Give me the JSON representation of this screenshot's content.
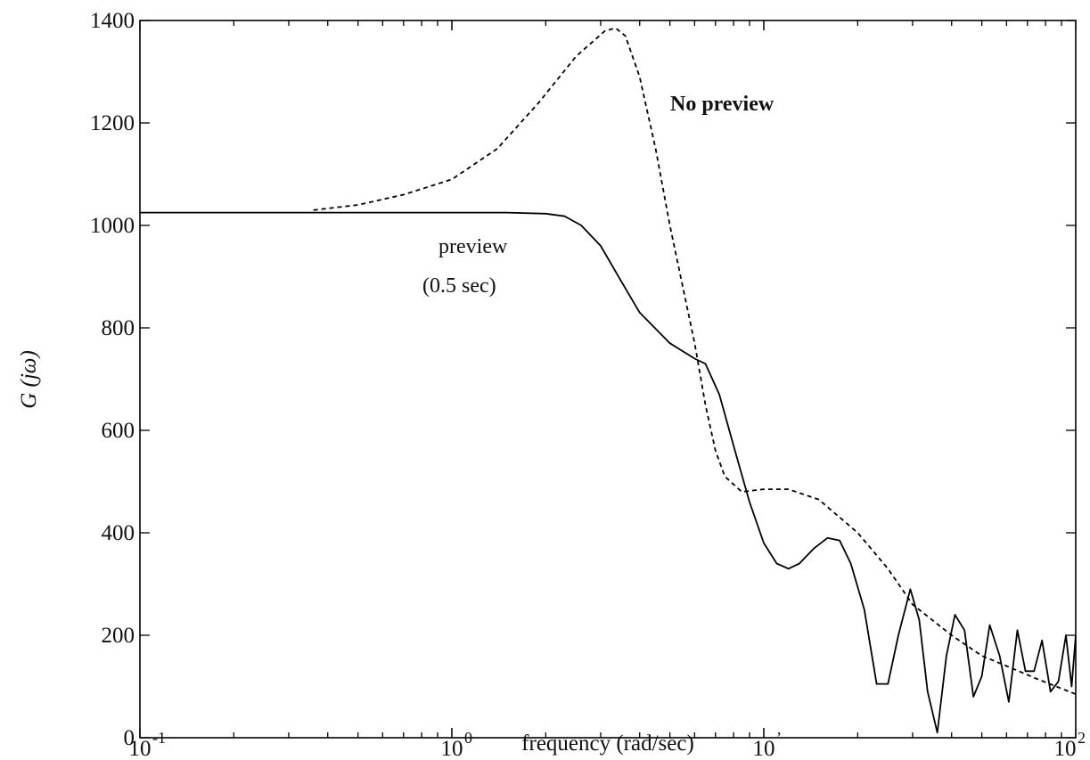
{
  "chart_data": {
    "type": "line",
    "x_scale": "log",
    "xlim": [
      0.1,
      100
    ],
    "ylim": [
      0,
      1400
    ],
    "grid": false,
    "xlabel": "frequency (rad/sec)",
    "ylabel": "G (jω)",
    "y_ticks": [
      "0",
      "200",
      "400",
      "600",
      "800",
      "1000",
      "1200",
      "1400"
    ],
    "x_ticks": [
      {
        "base": "10",
        "exp": "-1"
      },
      {
        "base": "10",
        "exp": "0"
      },
      {
        "base": "10",
        "exp": "’"
      },
      {
        "base": "10",
        "exp": "2"
      }
    ],
    "annotations": {
      "no_preview": "No preview",
      "preview": "preview",
      "preview_time": "(0.5 sec)"
    },
    "series": [
      {
        "style": "dashed",
        "x": [
          0.36,
          0.5,
          0.7,
          1.0,
          1.4,
          1.9,
          2.5,
          3.1,
          3.35,
          3.6,
          4.0,
          4.5,
          5.0,
          5.5,
          6.0,
          6.5,
          7.0,
          7.5,
          8.5,
          10,
          12,
          15,
          20,
          25,
          30,
          40,
          50,
          60,
          75,
          100
        ],
        "y": [
          1030,
          1040,
          1060,
          1090,
          1150,
          1240,
          1330,
          1380,
          1385,
          1370,
          1290,
          1150,
          1000,
          880,
          770,
          650,
          560,
          510,
          480,
          485,
          485,
          465,
          400,
          330,
          260,
          200,
          160,
          140,
          115,
          85
        ]
      },
      {
        "style": "solid",
        "x": [
          0.1,
          0.3,
          0.6,
          1.0,
          1.5,
          2.0,
          2.3,
          2.6,
          3.0,
          3.5,
          4.0,
          5.0,
          6.0,
          6.5,
          7.2,
          8.0,
          9.0,
          10.0,
          11.0,
          12.0,
          13.0,
          14.5,
          16.0,
          17.5,
          19.0,
          21.0,
          23.0,
          25.0,
          27.0,
          29.5,
          31.5,
          33.5,
          36.0,
          38.5,
          41.0,
          44.0,
          47.0,
          50.0,
          53.0,
          57.0,
          61.0,
          65.0,
          69.0,
          73.5,
          78.0,
          83.0,
          88.0,
          93.0,
          97.0,
          100.0
        ],
        "y": [
          1025,
          1025,
          1025,
          1025,
          1025,
          1023,
          1018,
          1000,
          960,
          890,
          830,
          770,
          740,
          730,
          670,
          570,
          460,
          380,
          340,
          330,
          340,
          370,
          390,
          385,
          340,
          250,
          105,
          105,
          200,
          290,
          230,
          90,
          10,
          160,
          240,
          210,
          80,
          120,
          220,
          160,
          70,
          210,
          130,
          130,
          190,
          90,
          110,
          200,
          100,
          200
        ]
      }
    ]
  }
}
